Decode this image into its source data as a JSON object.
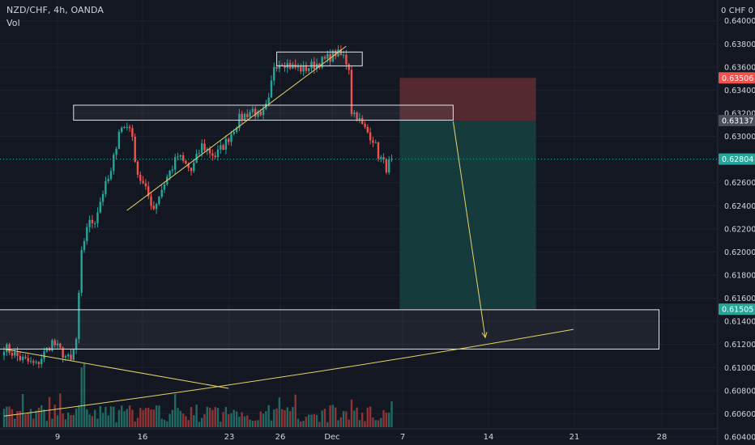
{
  "header": {
    "symbol_line": "NZD/CHF, 4h, OANDA",
    "indicator": "Vol",
    "currency_label": "0 CHF 0"
  },
  "colors": {
    "background": "#131722",
    "up": "#26a69a",
    "down": "#ef5350",
    "up_volume": "#1f6b64",
    "down_volume": "#8e3436",
    "trendline": "#e6d56a",
    "zone_border": "#e0e3eb",
    "stop_zone": "#5c2b31",
    "target_zone": "#163f3f"
  },
  "chart_data": {
    "type": "candlestick",
    "instrument": "NZD/CHF",
    "timeframe": "4h",
    "source": "OANDA",
    "ylim": [
      0.6033,
      0.6418
    ],
    "y_ticks": [
      "0.64000",
      "0.63800",
      "0.63600",
      "0.63400",
      "0.63200",
      "0.63000",
      "0.62800",
      "0.62600",
      "0.62400",
      "0.62200",
      "0.62000",
      "0.61800",
      "0.61600",
      "0.61400",
      "0.61200",
      "0.61000",
      "0.60800",
      "0.60600",
      "0.60400"
    ],
    "x_ticks": [
      "9",
      "16",
      "23",
      "26",
      "Dec",
      "7",
      "14",
      "21",
      "28"
    ],
    "price_badges": [
      {
        "label": "0.63506",
        "price": 0.63506,
        "color": "#ef5350"
      },
      {
        "label": "0.63137",
        "price": 0.63137,
        "color": "#4a4e5a"
      },
      {
        "label": "0.62804",
        "price": 0.62804,
        "color": "#26a69a"
      },
      {
        "label": "0.61505",
        "price": 0.61505,
        "color": "#26a69a"
      }
    ],
    "last_close": 0.62804,
    "anchors": [
      [
        0,
        0.6118
      ],
      [
        6,
        0.6108
      ],
      [
        12,
        0.6102
      ],
      [
        18,
        0.6122
      ],
      [
        22,
        0.6112
      ],
      [
        25,
        0.6105
      ],
      [
        27,
        0.6124
      ],
      [
        29,
        0.6198
      ],
      [
        31,
        0.6223
      ],
      [
        34,
        0.6228
      ],
      [
        37,
        0.6252
      ],
      [
        40,
        0.6268
      ],
      [
        43,
        0.6306
      ],
      [
        47,
        0.631
      ],
      [
        50,
        0.6268
      ],
      [
        54,
        0.6248
      ],
      [
        56,
        0.6238
      ],
      [
        60,
        0.626
      ],
      [
        65,
        0.6283
      ],
      [
        70,
        0.627
      ],
      [
        74,
        0.6292
      ],
      [
        79,
        0.6283
      ],
      [
        83,
        0.6295
      ],
      [
        88,
        0.6315
      ],
      [
        93,
        0.6323
      ],
      [
        96,
        0.6315
      ],
      [
        99,
        0.633
      ],
      [
        101,
        0.6362
      ],
      [
        104,
        0.6365
      ],
      [
        108,
        0.636
      ],
      [
        112,
        0.6358
      ],
      [
        116,
        0.6362
      ],
      [
        120,
        0.6366
      ],
      [
        124,
        0.6372
      ],
      [
        127,
        0.6369
      ],
      [
        129,
        0.636
      ],
      [
        130,
        0.6322
      ],
      [
        132,
        0.6318
      ],
      [
        134,
        0.6309
      ],
      [
        138,
        0.6298
      ],
      [
        140,
        0.6284
      ],
      [
        143,
        0.6273
      ],
      [
        145,
        0.628
      ]
    ],
    "candle_count": 146,
    "zones": [
      {
        "name": "resistance-zone-top",
        "price_top": 0.6373,
        "price_bottom": 0.6361,
        "from_bar": 102,
        "to_bar": 134
      },
      {
        "name": "resistance-zone-mid",
        "price_top": 0.6327,
        "price_bottom": 0.6314,
        "from_bar": 26,
        "to_bar": 168
      },
      {
        "name": "support-zone-target",
        "price_top": 0.615,
        "price_bottom": 0.6116,
        "from_bar": -2,
        "to_bar": 245
      }
    ],
    "position": {
      "type": "short",
      "entry": 0.63137,
      "stop": 0.63506,
      "target": 0.61505,
      "from_bar": 148,
      "to_bar": 199
    },
    "trendlines": [
      {
        "name": "rising-trendline",
        "from": [
          46,
          0.6236
        ],
        "to": [
          128,
          0.6378
        ]
      },
      {
        "name": "falling-trendline",
        "from": [
          0,
          0.6116
        ],
        "to": [
          84,
          0.6082
        ]
      },
      {
        "name": "long-support-curve",
        "from": [
          0,
          0.6058
        ],
        "to": [
          213,
          0.6133
        ]
      }
    ],
    "projection_arrow": {
      "from": [
        168,
        0.6313
      ],
      "to": [
        180,
        0.6126
      ]
    }
  }
}
